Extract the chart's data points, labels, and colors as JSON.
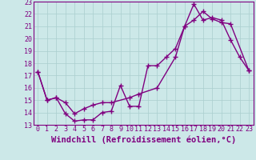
{
  "xlabel": "Windchill (Refroidissement éolien,°C)",
  "xlim": [
    -0.5,
    23.5
  ],
  "ylim": [
    13,
    23
  ],
  "xticks": [
    0,
    1,
    2,
    3,
    4,
    5,
    6,
    7,
    8,
    9,
    10,
    11,
    12,
    13,
    14,
    15,
    16,
    17,
    18,
    19,
    20,
    21,
    22,
    23
  ],
  "yticks": [
    13,
    14,
    15,
    16,
    17,
    18,
    19,
    20,
    21,
    22,
    23
  ],
  "line1_x": [
    0,
    1,
    2,
    3,
    4,
    5,
    6,
    7,
    8,
    9,
    10,
    11,
    12,
    13,
    14,
    15,
    16,
    17,
    18,
    19,
    20,
    21,
    22,
    23
  ],
  "line1_y": [
    17.3,
    15.0,
    15.2,
    13.9,
    13.3,
    13.4,
    13.4,
    14.0,
    14.1,
    16.2,
    14.5,
    14.5,
    17.8,
    17.8,
    18.5,
    19.2,
    21.0,
    22.8,
    21.5,
    21.7,
    21.5,
    19.9,
    18.5,
    17.4
  ],
  "line2_x": [
    0,
    1,
    2,
    3,
    4,
    5,
    6,
    7,
    8,
    10,
    11,
    13,
    15,
    16,
    17,
    18,
    19,
    20,
    21,
    23
  ],
  "line2_y": [
    17.3,
    15.0,
    15.2,
    14.8,
    13.9,
    14.3,
    14.6,
    14.8,
    14.8,
    15.2,
    15.5,
    16.0,
    18.5,
    21.0,
    21.5,
    22.2,
    21.6,
    21.3,
    21.2,
    17.4
  ],
  "line_color": "#800080",
  "bg_color": "#cce8e8",
  "grid_color": "#aacece",
  "marker": "+",
  "markersize": 5,
  "markeredgewidth": 1.0,
  "linewidth": 1.0,
  "xlabel_fontsize": 7.5,
  "tick_fontsize": 6.0,
  "font_family": "monospace"
}
